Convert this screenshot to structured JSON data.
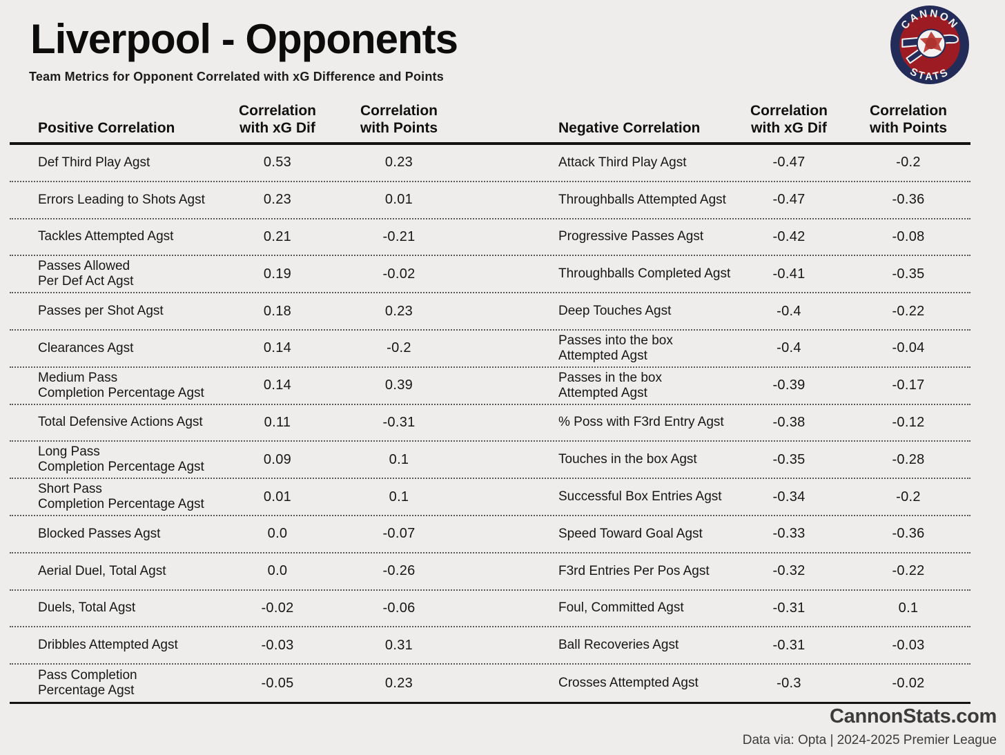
{
  "page": {
    "background": "#efedeb",
    "accent_navy": "#232c58",
    "accent_red": "#9d1c24",
    "text_color": "#141414",
    "footer_color": "#3b3b3b"
  },
  "header": {
    "title": "Liverpool - Opponents",
    "subtitle": "Team Metrics for Opponent Correlated with xG Difference and Points"
  },
  "logo": {
    "top": "CANNON",
    "bottom": "STATS"
  },
  "table": {
    "headers": {
      "positive": "Positive Correlation",
      "xg1": "Correlation\nwith xG Dif",
      "pts1": "Correlation\nwith Points",
      "negative": "Negative Correlation",
      "xg2": "Correlation\nwith xG Dif",
      "pts2": "Correlation\nwith Points"
    }
  },
  "chart_data": {
    "type": "table",
    "title": "Liverpool - Opponents",
    "subtitle": "Team Metrics for Opponent Correlated with xG Difference and Points",
    "groups": [
      {
        "name": "Positive Correlation",
        "columns": [
          "Metric",
          "Correlation with xG Dif",
          "Correlation with Points"
        ],
        "rows": [
          [
            "Def Third Play Agst",
            "0.53",
            "0.23"
          ],
          [
            "Errors Leading to Shots Agst",
            "0.23",
            "0.01"
          ],
          [
            "Tackles Attempted Agst",
            "0.21",
            "-0.21"
          ],
          [
            "Passes Allowed\nPer Def Act Agst",
            "0.19",
            "-0.02"
          ],
          [
            "Passes per Shot Agst",
            "0.18",
            "0.23"
          ],
          [
            "Clearances Agst",
            "0.14",
            "-0.2"
          ],
          [
            "Medium Pass\nCompletion Percentage Agst",
            "0.14",
            "0.39"
          ],
          [
            "Total Defensive Actions Agst",
            "0.11",
            "-0.31"
          ],
          [
            "Long Pass\nCompletion Percentage Agst",
            "0.09",
            "0.1"
          ],
          [
            "Short Pass\nCompletion Percentage Agst",
            "0.01",
            "0.1"
          ],
          [
            "Blocked Passes Agst",
            "0.0",
            "-0.07"
          ],
          [
            "Aerial Duel, Total Agst",
            "0.0",
            "-0.26"
          ],
          [
            "Duels, Total Agst",
            "-0.02",
            "-0.06"
          ],
          [
            "Dribbles Attempted Agst",
            "-0.03",
            "0.31"
          ],
          [
            "Pass Completion\nPercentage Agst",
            "-0.05",
            "0.23"
          ]
        ]
      },
      {
        "name": "Negative Correlation",
        "columns": [
          "Metric",
          "Correlation with xG Dif",
          "Correlation with Points"
        ],
        "rows": [
          [
            "Attack Third Play Agst",
            "-0.47",
            "-0.2"
          ],
          [
            "Throughballs Attempted Agst",
            "-0.47",
            "-0.36"
          ],
          [
            "Progressive Passes Agst",
            "-0.42",
            "-0.08"
          ],
          [
            "Throughballs Completed Agst",
            "-0.41",
            "-0.35"
          ],
          [
            "Deep Touches Agst",
            "-0.4",
            "-0.22"
          ],
          [
            "Passes into the box\nAttempted Agst",
            "-0.4",
            "-0.04"
          ],
          [
            "Passes in the box\nAttempted Agst",
            "-0.39",
            "-0.17"
          ],
          [
            "% Poss with F3rd Entry Agst",
            "-0.38",
            "-0.12"
          ],
          [
            "Touches in the box Agst",
            "-0.35",
            "-0.28"
          ],
          [
            "Successful Box Entries Agst",
            "-0.34",
            "-0.2"
          ],
          [
            "Speed Toward Goal Agst",
            "-0.33",
            "-0.36"
          ],
          [
            "F3rd Entries Per Pos Agst",
            "-0.32",
            "-0.22"
          ],
          [
            "Foul, Committed Agst",
            "-0.31",
            "0.1"
          ],
          [
            "Ball Recoveries Agst",
            "-0.31",
            "-0.03"
          ],
          [
            "Crosses Attempted Agst",
            "-0.3",
            "-0.02"
          ]
        ]
      }
    ]
  },
  "footer": {
    "brand": "CannonStats.com",
    "source": "Data via: Opta | 2024-2025 Premier League"
  }
}
